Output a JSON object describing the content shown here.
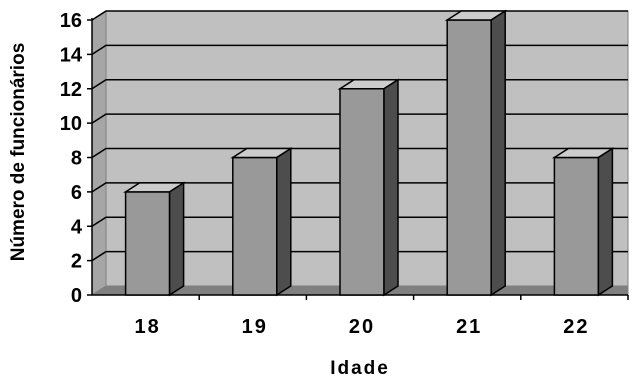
{
  "chart_data": {
    "type": "bar",
    "categories": [
      "18",
      "19",
      "20",
      "21",
      "22"
    ],
    "values": [
      6,
      8,
      12,
      16,
      8
    ],
    "xlabel": "Idade",
    "ylabel": "Número de funcionários",
    "ylim": [
      0,
      16
    ],
    "yticks": [
      0,
      2,
      4,
      6,
      8,
      10,
      12,
      14,
      16
    ],
    "grid": true,
    "legend": "none",
    "style": "3d-column",
    "colors": {
      "plot_wall": "#c0c0c0",
      "bar_front": "#999999",
      "bar_top": "#cccccc",
      "bar_side": "#4d4d4d",
      "floor": "#808080",
      "gridline": "#000000"
    }
  }
}
